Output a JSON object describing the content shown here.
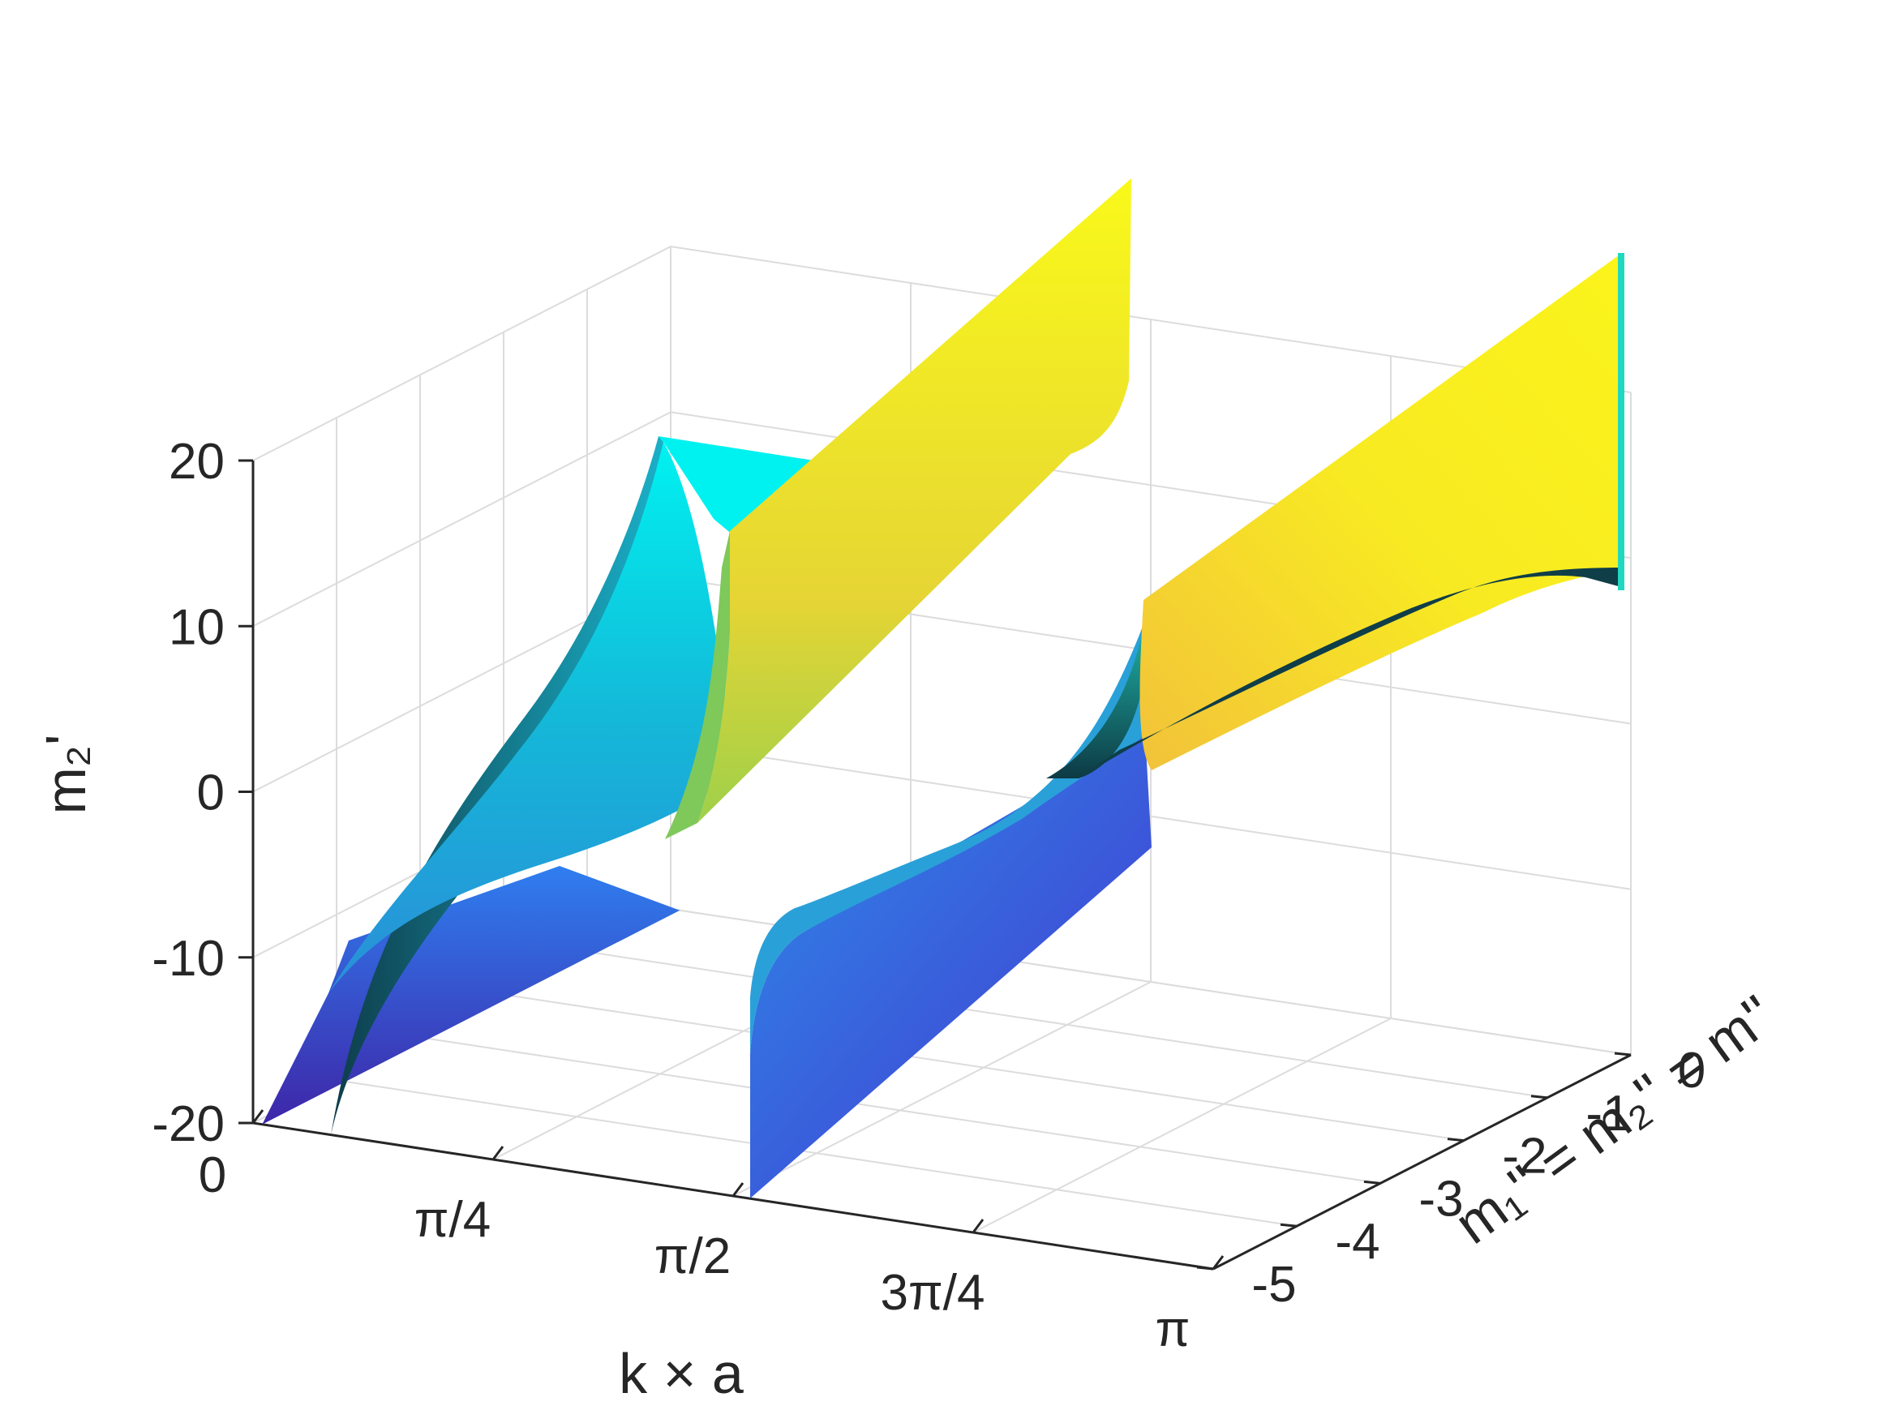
{
  "chart_data": {
    "type": "surface",
    "title": "",
    "xlabel": "k × a",
    "ylabel": "m₁'' = m₂'' = m''",
    "zlabel": "m₂'",
    "xlim": [
      0,
      3.14159
    ],
    "ylim": [
      -5,
      0
    ],
    "zlim": [
      -20,
      20
    ],
    "x_ticks": [
      0,
      0.7854,
      1.5708,
      2.3562,
      3.14159
    ],
    "x_tick_labels": [
      "0",
      "π/4",
      "π/2",
      "3π/4",
      "π"
    ],
    "y_ticks": [
      0,
      -1,
      -2,
      -3,
      -4,
      -5
    ],
    "y_tick_labels": [
      "0",
      "-1",
      "-2",
      "-3",
      "-4",
      "-5"
    ],
    "z_ticks": [
      20,
      10,
      0,
      -10,
      -20
    ],
    "z_tick_labels": [
      "20",
      "10",
      "0",
      "-10",
      "-20"
    ],
    "grid": true,
    "colormap": "parula",
    "colors": {
      "axis": "#262626",
      "grid": "#dcdcdc",
      "low": "#3e26a8",
      "mid": "#13beb8",
      "high": "#f9fb0e"
    },
    "series": [
      {
        "branch": 1,
        "x_range": [
          0.03,
          1.57
        ],
        "y_range": [
          -5,
          0
        ],
        "z_at_x_start": -20,
        "z_at_x_end": 20,
        "pole_at_x": 1.5708,
        "sample_x": [
          0.03,
          0.4,
          0.8,
          1.2,
          1.5,
          1.5708
        ],
        "sample_z": [
          -20,
          -12,
          -4,
          5,
          15,
          20
        ]
      },
      {
        "branch": 2,
        "x_range": [
          1.57,
          3.14159
        ],
        "y_range": [
          -5,
          0
        ],
        "z_at_x_start": -20,
        "z_at_x_end": 10,
        "sample_x": [
          1.5708,
          1.8,
          2.2,
          2.6,
          3.0,
          3.14159
        ],
        "sample_z": [
          -20,
          -5,
          2,
          6,
          9,
          10
        ]
      }
    ]
  }
}
